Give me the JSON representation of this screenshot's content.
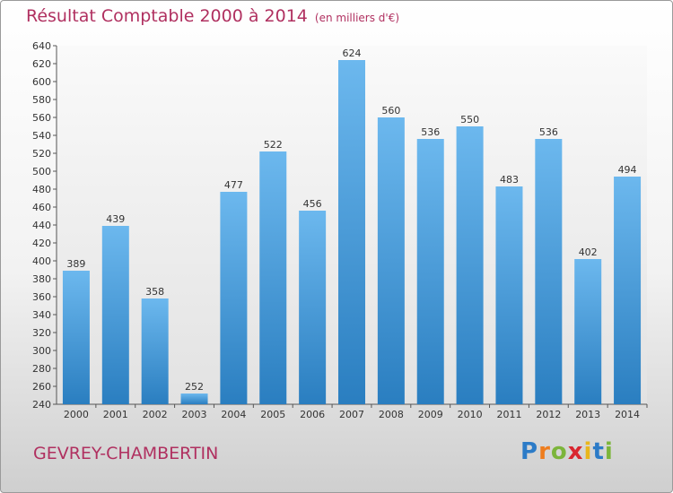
{
  "header": {
    "title": "Résultat Comptable 2000 à 2014",
    "subtitle": "(en milliers d'€)"
  },
  "footer": {
    "commune": "GEVREY-CHAMBERTIN",
    "brand_letters": [
      "P",
      "r",
      "o",
      "x",
      "i",
      "t",
      "i"
    ],
    "brand_colors": [
      "#2c7bc7",
      "#ee7d1e",
      "#7cb53b",
      "#d9262f",
      "#e9b61c",
      "#2c7bc7",
      "#7cb53b"
    ]
  },
  "colors": {
    "bar_top": "#6cb8ee",
    "bar_bottom": "#2a7ec0",
    "accent_text": "#b03060"
  },
  "chart_data": {
    "type": "bar",
    "categories": [
      "2000",
      "2001",
      "2002",
      "2003",
      "2004",
      "2005",
      "2006",
      "2007",
      "2008",
      "2009",
      "2010",
      "2011",
      "2012",
      "2013",
      "2014"
    ],
    "values": [
      389,
      439,
      358,
      252,
      477,
      522,
      456,
      624,
      560,
      536,
      550,
      483,
      536,
      402,
      494
    ],
    "title": "Résultat Comptable 2000 à 2014",
    "xlabel": "",
    "ylabel": "",
    "ylim": [
      240,
      640
    ],
    "ytick_step": 20,
    "grid": false,
    "legend": "none"
  }
}
